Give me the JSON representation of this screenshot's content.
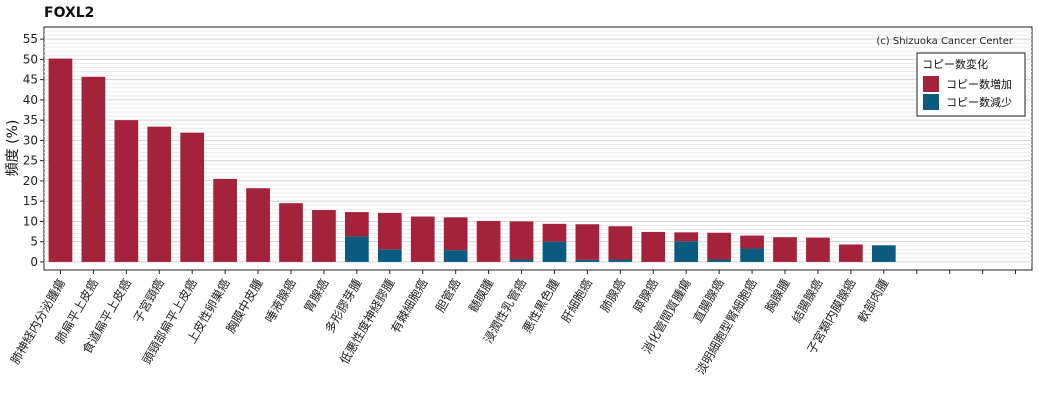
{
  "chart_data": {
    "type": "bar",
    "title": "FOXL2",
    "ylabel": "頻度 (%)",
    "credit": "(c) Shizuoka Cancer Center",
    "ylim": [
      -2,
      58
    ],
    "yticks": [
      0,
      5,
      10,
      15,
      20,
      25,
      30,
      35,
      40,
      45,
      50,
      55
    ],
    "grid": "horizontal minor",
    "legend": {
      "title": "コピー数変化",
      "position": "top-right",
      "entries": [
        "コピー数増加",
        "コピー数減少"
      ]
    },
    "colors": {
      "gain": "#a4223a",
      "loss": "#0b5b80"
    },
    "categories": [
      "肺神経内分泌腫瘍",
      "肺扁平上皮癌",
      "食道扁平上皮癌",
      "子宮頸癌",
      "頭頸部扁平上皮癌",
      "上皮性卵巣癌",
      "胸膜中皮腫",
      "唾液腺癌",
      "胃腺癌",
      "多形膠芽腫",
      "低悪性度神経膠腫",
      "有棘細胞癌",
      "胆管癌",
      "髄膜腫",
      "浸潤性乳管癌",
      "悪性黒色腫",
      "肝細胞癌",
      "肺腺癌",
      "膵腺癌",
      "消化管間質腫瘍",
      "直腸腺癌",
      "淡明細胞型腎細胞癌",
      "胸腺腫",
      "結腸腺癌",
      "子宮類内膜腺癌",
      "軟部肉腫",
      "",
      "",
      "",
      ""
    ],
    "series": [
      {
        "name": "コピー数増加",
        "values": [
          50.2,
          45.7,
          35.0,
          33.4,
          31.9,
          20.5,
          18.2,
          14.5,
          12.8,
          6.0,
          9.0,
          11.2,
          8.1,
          10.1,
          9.4,
          4.4,
          8.8,
          8.2,
          7.4,
          2.2,
          6.6,
          3.2,
          6.1,
          6.0,
          4.3,
          0,
          0,
          0,
          0,
          0
        ]
      },
      {
        "name": "コピー数減少",
        "values": [
          0,
          0,
          0,
          0,
          0,
          0,
          0,
          0,
          0,
          6.3,
          3.1,
          0,
          2.9,
          0,
          0.6,
          5.0,
          0.5,
          0.6,
          0,
          5.1,
          0.6,
          3.3,
          0,
          0,
          0,
          4.1,
          0,
          0,
          0,
          0
        ]
      }
    ]
  }
}
